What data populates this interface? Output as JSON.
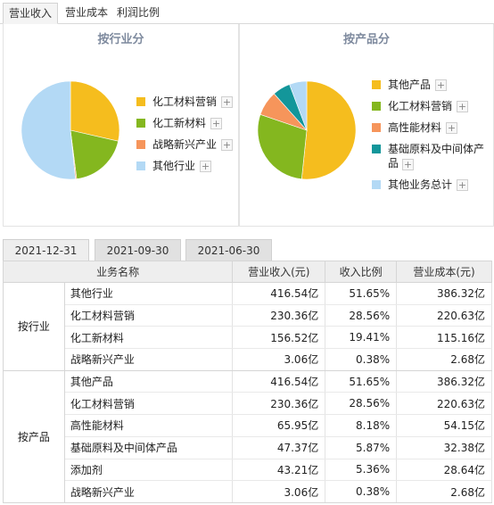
{
  "tabs": [
    {
      "label": "营业收入",
      "active": true
    },
    {
      "label": "营业成本",
      "active": false
    },
    {
      "label": "利润比例",
      "active": false
    }
  ],
  "plus_symbol": "+",
  "chart_data": [
    {
      "type": "pie",
      "title": "按行业分",
      "categories": [
        "化工材料营销",
        "化工新材料",
        "战略新兴产业",
        "其他行业"
      ],
      "values": [
        28.56,
        19.41,
        0.38,
        51.65
      ],
      "colors": [
        "#f5bd1e",
        "#84b71f",
        "#f6955b",
        "#b3d9f5"
      ],
      "start_angle_deg": 0
    },
    {
      "type": "pie",
      "title": "按产品分",
      "categories": [
        "其他产品",
        "化工材料营销",
        "高性能材料",
        "基础原料及中间体产品",
        "其他业务总计"
      ],
      "values": [
        51.65,
        28.56,
        8.18,
        5.87,
        5.74
      ],
      "colors": [
        "#f5bd1e",
        "#84b71f",
        "#f6955b",
        "#13969a",
        "#b3d9f5"
      ],
      "start_angle_deg": 0
    }
  ],
  "date_tabs": [
    {
      "label": "2021-12-31",
      "active": true
    },
    {
      "label": "2021-09-30",
      "active": false
    },
    {
      "label": "2021-06-30",
      "active": false
    }
  ],
  "table": {
    "headers": [
      "业务名称",
      "营业收入(元)",
      "收入比例",
      "营业成本(元)"
    ],
    "groups": [
      {
        "label": "按行业",
        "rows": [
          [
            "其他行业",
            "416.54亿",
            "51.65%",
            "386.32亿"
          ],
          [
            "化工材料营销",
            "230.36亿",
            "28.56%",
            "220.63亿"
          ],
          [
            "化工新材料",
            "156.52亿",
            "19.41%",
            "115.16亿"
          ],
          [
            "战略新兴产业",
            "3.06亿",
            "0.38%",
            "2.68亿"
          ]
        ]
      },
      {
        "label": "按产品",
        "rows": [
          [
            "其他产品",
            "416.54亿",
            "51.65%",
            "386.32亿"
          ],
          [
            "化工材料营销",
            "230.36亿",
            "28.56%",
            "220.63亿"
          ],
          [
            "高性能材料",
            "65.95亿",
            "8.18%",
            "54.15亿"
          ],
          [
            "基础原料及中间体产品",
            "47.37亿",
            "5.87%",
            "32.38亿"
          ],
          [
            "添加剂",
            "43.21亿",
            "5.36%",
            "28.64亿"
          ],
          [
            "战略新兴产业",
            "3.06亿",
            "0.38%",
            "2.68亿"
          ]
        ]
      }
    ]
  }
}
